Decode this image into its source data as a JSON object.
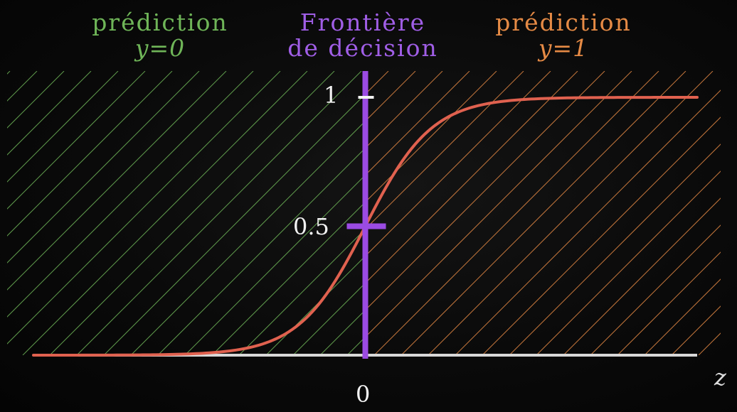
{
  "headers": {
    "left": {
      "line1": "prédiction",
      "line2": "y=0",
      "color": "#6fb558"
    },
    "middle": {
      "line1": "Frontière",
      "line2": "de décision",
      "color": "#a05ee6"
    },
    "right": {
      "line1": "prédiction",
      "line2": "y=1",
      "color": "#e58a45"
    }
  },
  "chart_data": {
    "type": "line",
    "title": "",
    "xlabel": "z",
    "ylabel": "",
    "xlim": [
      -10,
      10
    ],
    "ylim": [
      0,
      1
    ],
    "y_ticks": [
      {
        "value": 1,
        "label": "1"
      },
      {
        "value": 0.5,
        "label": "0.5"
      }
    ],
    "x_ticks": [
      {
        "value": 0,
        "label": "0"
      }
    ],
    "decision_boundary": {
      "x": 0,
      "label": "Frontière de décision"
    },
    "regions": [
      {
        "name": "prédiction y=0",
        "x_range": [
          -10,
          0
        ],
        "color": "#6fb558",
        "pattern": "diagonal-hatch"
      },
      {
        "name": "prédiction y=1",
        "x_range": [
          0,
          10
        ],
        "color": "#e58a45",
        "pattern": "diagonal-hatch"
      }
    ],
    "series": [
      {
        "function": "sigmoid",
        "color": "#e0614f",
        "x": [
          -10,
          -8,
          -6,
          -5,
          -4,
          -3,
          -2,
          -1.5,
          -1,
          -0.5,
          0,
          0.5,
          1,
          1.5,
          2,
          3,
          4,
          5,
          6,
          8,
          10
        ],
        "y": [
          4.54e-05,
          0.000335,
          0.00247,
          0.00669,
          0.018,
          0.0474,
          0.119,
          0.182,
          0.269,
          0.378,
          0.5,
          0.622,
          0.731,
          0.818,
          0.881,
          0.953,
          0.982,
          0.993,
          0.998,
          0.9997,
          0.99995
        ]
      }
    ],
    "colors": {
      "axis": "#d8d8d8",
      "boundary": "#9b4be3",
      "curve": "#e0614f"
    }
  }
}
